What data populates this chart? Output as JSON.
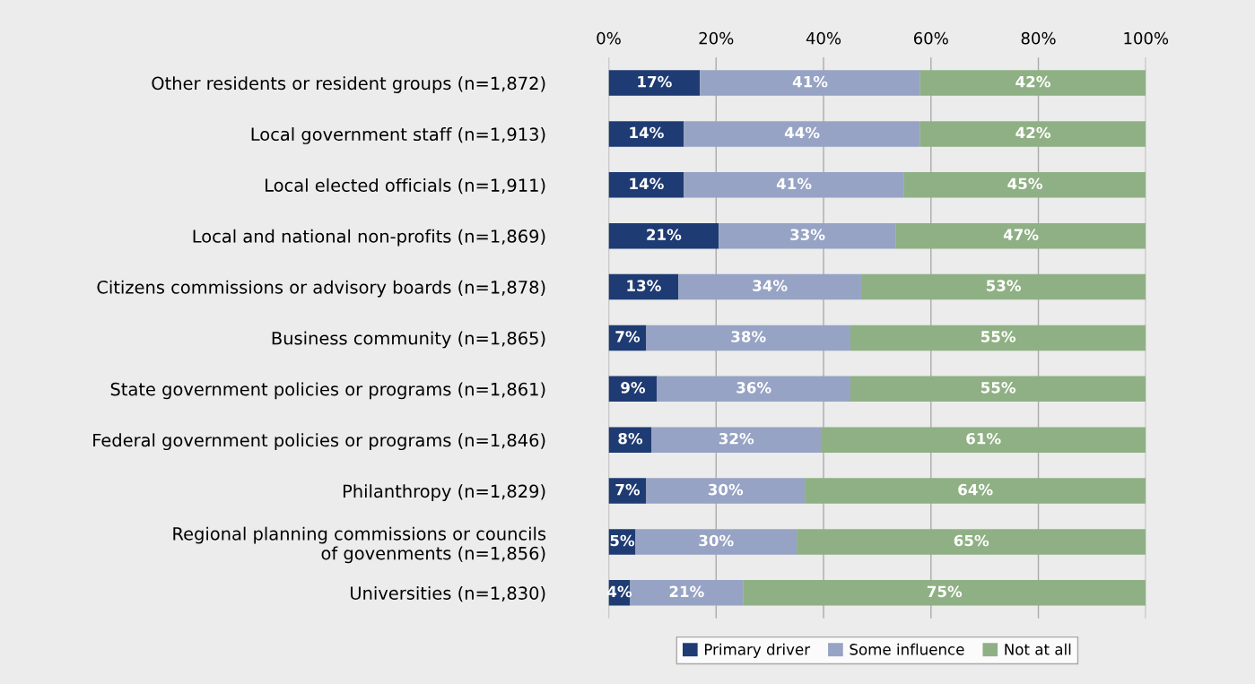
{
  "chart_data": {
    "type": "bar",
    "orientation": "horizontal",
    "stacked": true,
    "categories": [
      "Other residents or resident groups (n=1,872)",
      "Local government staff (n=1,913)",
      "Local elected officials (n=1,911)",
      "Local and national non-profits (n=1,869)",
      "Citizens commissions or advisory boards (n=1,878)",
      "Business community (n=1,865)",
      "State government policies or programs (n=1,861)",
      "Federal government policies or programs (n=1,846)",
      "Philanthropy (n=1,829)",
      "Regional planning commissions or councils\nof govenments (n=1,856)",
      "Universities (n=1,830)"
    ],
    "series": [
      {
        "name": "Primary driver",
        "color": "#1f3b73",
        "values": [
          17,
          14,
          14,
          20.5,
          13,
          7,
          9,
          8,
          7,
          5,
          4
        ],
        "value_labels": [
          "17%",
          "14%",
          "14%",
          "21%",
          "13%",
          "7%",
          "9%",
          "8%",
          "7%",
          "5%",
          "4%"
        ]
      },
      {
        "name": "Some influence",
        "color": "#97a3c4",
        "values": [
          41,
          44,
          41,
          33,
          34,
          38,
          36,
          31.5,
          29.5,
          30,
          21
        ],
        "value_labels": [
          "41%",
          "44%",
          "41%",
          "33%",
          "34%",
          "38%",
          "36%",
          "32%",
          "30%",
          "30%",
          "21%"
        ]
      },
      {
        "name": "Not at all",
        "color": "#8fb084",
        "values": [
          42,
          42,
          45,
          46.5,
          53,
          55,
          55,
          60.5,
          63.5,
          65,
          75
        ],
        "value_labels": [
          "42%",
          "42%",
          "45%",
          "47%",
          "53%",
          "55%",
          "55%",
          "61%",
          "64%",
          "65%",
          "75%"
        ]
      }
    ],
    "xlim": [
      0,
      100
    ],
    "xticks": [
      {
        "value": 0,
        "label": "0%"
      },
      {
        "value": 20,
        "label": "20%"
      },
      {
        "value": 40,
        "label": "40%"
      },
      {
        "value": 60,
        "label": "60%"
      },
      {
        "value": 80,
        "label": "80%"
      },
      {
        "value": 100,
        "label": "100%"
      }
    ],
    "grid": "x",
    "legend": "bottom"
  }
}
